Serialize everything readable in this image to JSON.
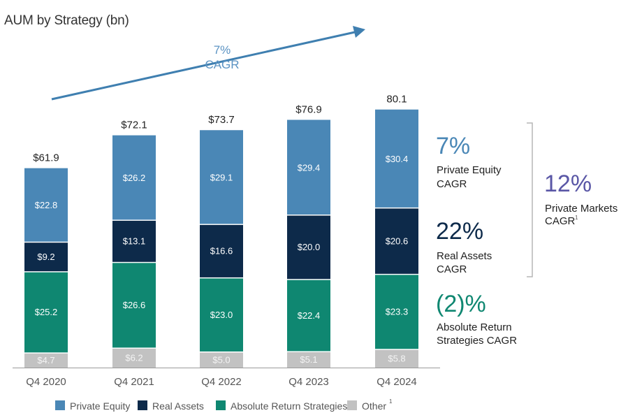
{
  "chart_data": {
    "type": "bar",
    "stacked": true,
    "title": "AUM by Strategy (bn)",
    "categories": [
      "Q4 2020",
      "Q4 2021",
      "Q4 2022",
      "Q4 2023",
      "Q4 2024"
    ],
    "totals": [
      "$61.9",
      "$72.1",
      "$73.7",
      "$76.9",
      "80.1"
    ],
    "series": [
      {
        "name": "Other",
        "footnote": "1",
        "color": "#c2c2c2",
        "values": [
          4.7,
          6.2,
          5.0,
          5.1,
          5.8
        ],
        "labels": [
          "$4.7",
          "$6.2",
          "$5.0",
          "$5.1",
          "$5.8"
        ]
      },
      {
        "name": "Absolute Return Strategies",
        "color": "#0f8771",
        "values": [
          25.2,
          26.6,
          23.0,
          22.4,
          23.3
        ],
        "labels": [
          "$25.2",
          "$26.6",
          "$23.0",
          "$22.4",
          "$23.3"
        ]
      },
      {
        "name": "Real Assets",
        "color": "#0d2a4a",
        "values": [
          9.2,
          13.1,
          16.6,
          20.0,
          20.6
        ],
        "labels": [
          "$9.2",
          "$13.1",
          "$16.6",
          "$20.0",
          "$20.6"
        ]
      },
      {
        "name": "Private Equity",
        "color": "#4a87b6",
        "values": [
          22.8,
          26.2,
          29.1,
          29.4,
          30.4
        ],
        "labels": [
          "$22.8",
          "$26.2",
          "$29.1",
          "$29.4",
          "$30.4"
        ]
      }
    ],
    "legend": [
      {
        "name": "Private Equity",
        "color": "#4a87b6"
      },
      {
        "name": "Real Assets",
        "color": "#0d2a4a"
      },
      {
        "name": "Absolute Return Strategies",
        "color": "#0f8771"
      },
      {
        "name": "Other",
        "color": "#c2c2c2",
        "footnote": "1"
      }
    ],
    "trend_annotation": {
      "line1": "7%",
      "line2": "CAGR",
      "color": "#3f7fb0"
    },
    "side_cagr": [
      {
        "pct": "7%",
        "line1": "Private Equity",
        "line2": "CAGR",
        "color": "#4a87b6"
      },
      {
        "pct": "22%",
        "line1": "Real Assets",
        "line2": "CAGR",
        "color": "#0d2a4a"
      },
      {
        "pct": "(2)%",
        "line1": "Absolute Return",
        "line2": "Strategies CAGR",
        "color": "#0f8771"
      }
    ],
    "bracket_cagr": {
      "pct": "12%",
      "line1": "Private Markets",
      "line2": "CAGR",
      "footnote": "1",
      "color": "#5a57a6"
    }
  }
}
